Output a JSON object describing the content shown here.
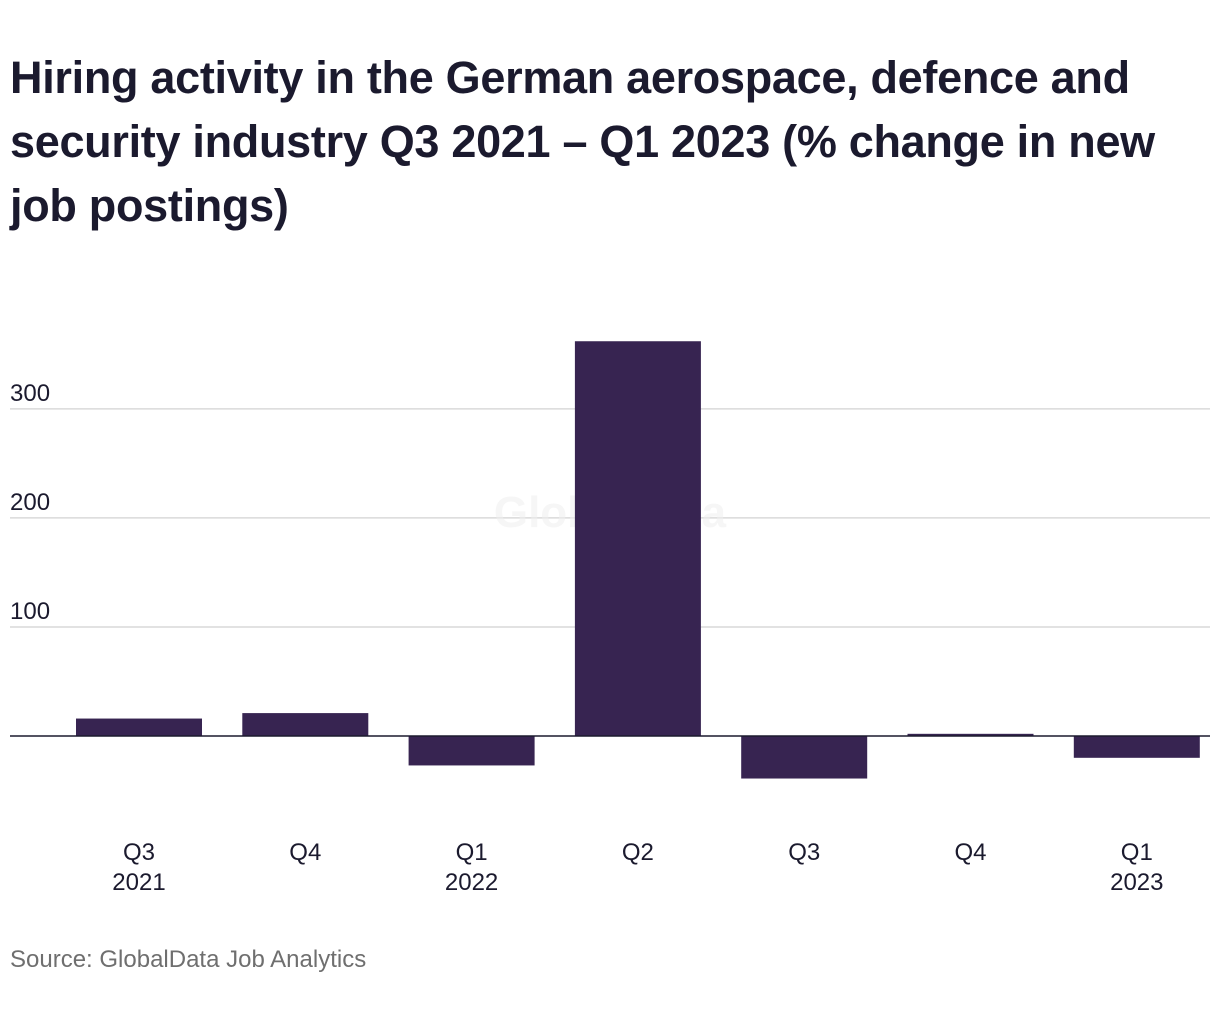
{
  "title": "Hiring activity in the German aerospace, defence and security industry Q3 2021 – Q1 2023 (% change in new job postings)",
  "source": "Source: GlobalData Job Analytics",
  "watermark": "GlobalData",
  "chart_data": {
    "type": "bar",
    "categories": [
      "Q3 2021",
      "Q4",
      "Q1 2022",
      "Q2",
      "Q3",
      "Q4",
      "Q1 2023"
    ],
    "category_labels": [
      [
        "Q3",
        "2021"
      ],
      [
        "Q4"
      ],
      [
        "Q1",
        "2022"
      ],
      [
        "Q2"
      ],
      [
        "Q3"
      ],
      [
        "Q4"
      ],
      [
        "Q1",
        "2023"
      ]
    ],
    "values": [
      16,
      21,
      -27,
      362,
      -39,
      2,
      -20
    ],
    "yticks": [
      100,
      200,
      300
    ],
    "ylim": [
      -60,
      380
    ],
    "grid": true,
    "bar_color": "#372451",
    "xlabel": "",
    "ylabel": ""
  }
}
